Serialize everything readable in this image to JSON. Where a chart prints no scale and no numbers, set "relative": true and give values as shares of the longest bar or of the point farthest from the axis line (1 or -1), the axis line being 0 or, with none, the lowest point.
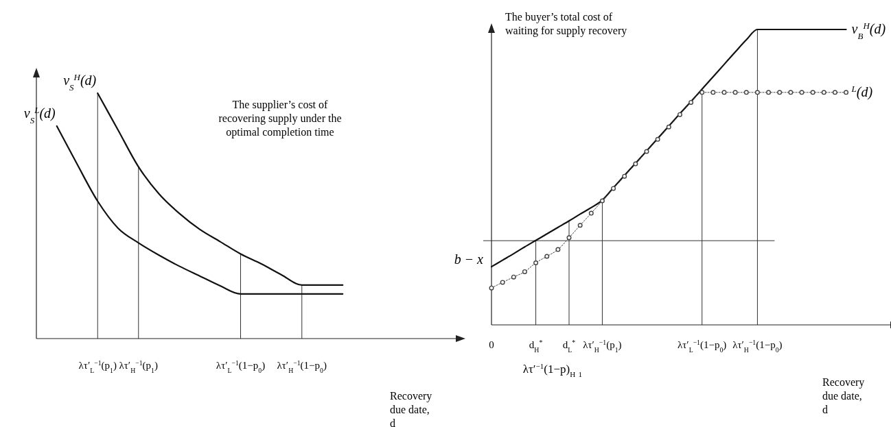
{
  "chart_data": [
    {
      "type": "line",
      "title": "The supplier’s cost of recovering supply under the optimal completion time",
      "xlabel": "Recovery due date, d",
      "relative": true,
      "categories": [
        null,
        null,
        null,
        "λτ′$_{L}$$^{−1}$(p$_{1}$)",
        null,
        "λτ′$_{H}$$^{−1}$(p$_{1}$)",
        null,
        null,
        null,
        null,
        "λτ′$_{L}$$^{−1}$(1−p$_{0}$)",
        null,
        null,
        "λτ′$_{H}$$^{−1}$(1−p$_{0}$)",
        null,
        null,
        null,
        null,
        null,
        null,
        null
      ],
      "ref_lines": [
        {
          "axis": "x",
          "value": "λτ′$_{L}$$^{−1}$(p$_{1}$)"
        },
        {
          "axis": "x",
          "value": "λτ′$_{H}$$^{−1}$(p$_{1}$)"
        },
        {
          "axis": "x",
          "value": "λτ′$_{L}$$^{−1}$(1−p$_{0}$)"
        },
        {
          "axis": "x",
          "value": "λτ′$_{H}$$^{−1}$(1−p$_{0}$)"
        }
      ],
      "series": [
        {
          "name": "ν$_{S}$$^{L}$(d)",
          "color": "#111111",
          "values": [
            null,
            0.866,
            0.71,
            0.56,
            0.45,
            0.39,
            0.34,
            0.295,
            0.255,
            0.215,
            0.182,
            0.182,
            0.182,
            0.182,
            0.182,
            0.182,
            null,
            null,
            null,
            null,
            null
          ]
        },
        {
          "name": "ν$_{S}$$^{H}$(d)",
          "color": "#111111",
          "values": [
            null,
            null,
            null,
            1,
            0.85,
            0.7,
            0.59,
            0.51,
            0.445,
            0.395,
            0.345,
            0.305,
            0.26,
            0.218,
            0.218,
            0.218,
            null,
            null,
            null,
            null,
            null
          ]
        }
      ]
    },
    {
      "type": "line",
      "title": "The buyer’s total cost of waiting for supply recovery",
      "xlabel": "Recovery due date, d",
      "relative": true,
      "categories": [
        "0",
        null,
        null,
        null,
        "d$_{H}$$^{*}$",
        null,
        null,
        "d$_{L}$$^{*}$",
        null,
        null,
        "λτ′$_{H}$$^{−1}$(p$_{1}$)",
        null,
        null,
        null,
        null,
        null,
        null,
        null,
        null,
        "λτ′$_{L}$$^{−1}$(1−p$_{0}$)",
        null,
        null,
        null,
        null,
        "λτ′$_{H}$$^{−1}$(1−p$_{0}$)",
        null,
        null,
        null,
        null,
        null,
        null,
        null,
        null,
        null,
        null,
        null
      ],
      "ref_lines": [
        {
          "axis": "y",
          "value": 0.285,
          "label": "b − x"
        },
        {
          "axis": "x",
          "value": "d$_{H}$$^{*}$"
        },
        {
          "axis": "x",
          "value": "d$_{L}$$^{*}$"
        },
        {
          "axis": "x",
          "value": "λτ′$_{H}$$^{−1}$(p$_{1}$)"
        },
        {
          "axis": "x",
          "value": "λτ′$_{L}$$^{−1}$(1−p$_{0}$)"
        },
        {
          "axis": "x",
          "value": "λτ′$_{H}$$^{−1}$(1−p$_{0}$)"
        }
      ],
      "annotations": [
        "λτ′$^{−1}$(1−p)$_{H}$ $_{1}$"
      ],
      "series": [
        {
          "name": "ν$_{B}$$^{H}$(d)",
          "color": "#111111",
          "values": [
            0.197,
            0.219,
            0.241,
            0.264,
            0.286,
            0.308,
            0.33,
            0.352,
            0.375,
            0.397,
            0.422,
            0.464,
            0.506,
            0.547,
            0.589,
            0.631,
            0.673,
            0.715,
            0.756,
            0.798,
            0.84,
            0.882,
            0.924,
            0.965,
            1,
            1,
            1,
            1,
            1,
            1,
            1,
            1,
            1,
            null,
            null,
            null
          ]
        },
        {
          "name": "$^{L}$(d)",
          "color": "#444444",
          "marker": "circle",
          "line_style": "dotted",
          "values": [
            0.125,
            0.144,
            0.162,
            0.18,
            0.21,
            0.232,
            0.255,
            0.295,
            0.337,
            0.378,
            0.42,
            0.462,
            0.503,
            0.545,
            0.587,
            0.628,
            0.67,
            0.712,
            0.753,
            0.787,
            0.787,
            0.787,
            0.787,
            0.787,
            0.787,
            0.787,
            0.787,
            0.787,
            0.787,
            0.787,
            0.787,
            0.787,
            0.787,
            null,
            null,
            null
          ]
        }
      ]
    }
  ]
}
